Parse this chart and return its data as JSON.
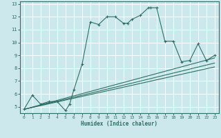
{
  "xlabel": "Humidex (Indice chaleur)",
  "xlim": [
    -0.5,
    23.5
  ],
  "ylim": [
    4.5,
    13.2
  ],
  "yticks": [
    5,
    6,
    7,
    8,
    9,
    10,
    11,
    12,
    13
  ],
  "xticks": [
    0,
    1,
    2,
    3,
    4,
    5,
    6,
    7,
    8,
    9,
    10,
    11,
    12,
    13,
    14,
    15,
    16,
    17,
    18,
    19,
    20,
    21,
    22,
    23
  ],
  "bg_color": "#cce8ec",
  "line_color": "#2d6e63",
  "grid_color": "#ffffff",
  "grid_minor_color": "#e0f0f2",
  "main_line": {
    "x": [
      0,
      1,
      2,
      3,
      4,
      5,
      5.5,
      6,
      7,
      8,
      9,
      10,
      11,
      12,
      12.5,
      13,
      14,
      15,
      15.3,
      16,
      17,
      18,
      19,
      20,
      21,
      22,
      23
    ],
    "y": [
      4.8,
      5.9,
      5.2,
      5.4,
      5.4,
      4.7,
      5.2,
      6.3,
      8.3,
      11.6,
      11.4,
      12.0,
      12.0,
      11.5,
      11.5,
      11.8,
      12.1,
      12.7,
      12.7,
      12.7,
      10.1,
      10.1,
      8.5,
      8.6,
      9.9,
      8.6,
      9.0
    ]
  },
  "ref_lines": [
    {
      "x": [
        0,
        23
      ],
      "y": [
        4.8,
        8.1
      ]
    },
    {
      "x": [
        0,
        23
      ],
      "y": [
        4.8,
        8.4
      ]
    },
    {
      "x": [
        0,
        23
      ],
      "y": [
        4.8,
        8.8
      ]
    }
  ]
}
